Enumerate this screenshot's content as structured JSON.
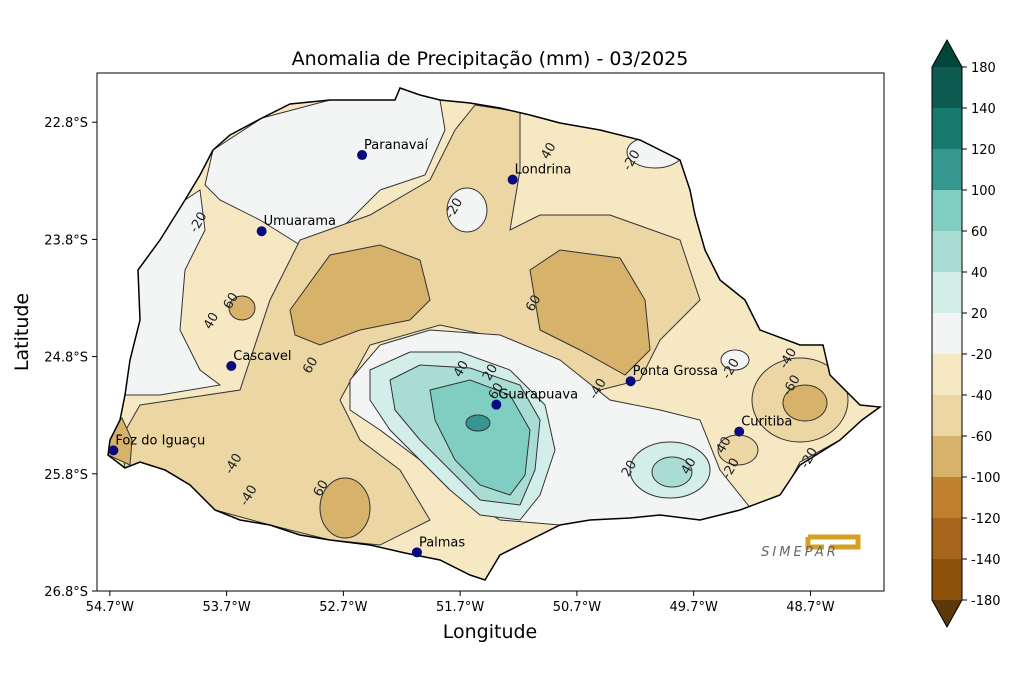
{
  "map": {
    "title": "Anomalia de Precipitação (mm) - 03/2025",
    "xlabel": "Longitude",
    "ylabel": "Latitude",
    "xlim": [
      -54.81,
      -48.07
    ],
    "ylim": [
      -26.8,
      -22.38
    ],
    "xticks": [
      {
        "value": -54.7,
        "label": "54.7°W"
      },
      {
        "value": -53.7,
        "label": "53.7°W"
      },
      {
        "value": -52.7,
        "label": "52.7°W"
      },
      {
        "value": -51.7,
        "label": "51.7°W"
      },
      {
        "value": -50.7,
        "label": "50.7°W"
      },
      {
        "value": -49.7,
        "label": "49.7°W"
      },
      {
        "value": -48.7,
        "label": "48.7°W"
      }
    ],
    "yticks": [
      {
        "value": -22.8,
        "label": "22.8°S"
      },
      {
        "value": -23.8,
        "label": "23.8°S"
      },
      {
        "value": -24.8,
        "label": "24.8°S"
      },
      {
        "value": -25.8,
        "label": "25.8°S"
      },
      {
        "value": -26.8,
        "label": "26.8°S"
      }
    ],
    "cities": [
      {
        "name": "Paranavaí",
        "lon": -52.54,
        "lat": -23.08
      },
      {
        "name": "Londrina",
        "lon": -51.25,
        "lat": -23.29
      },
      {
        "name": "Umuarama",
        "lon": -53.4,
        "lat": -23.73
      },
      {
        "name": "Cascavel",
        "lon": -53.66,
        "lat": -24.88
      },
      {
        "name": "Guarapuava",
        "lon": -51.39,
        "lat": -25.21
      },
      {
        "name": "Ponta Grossa",
        "lon": -50.24,
        "lat": -25.01
      },
      {
        "name": "Curitiba",
        "lon": -49.31,
        "lat": -25.44
      },
      {
        "name": "Foz do Iguaçu",
        "lon": -54.67,
        "lat": -25.6
      },
      {
        "name": "Palmas",
        "lon": -52.07,
        "lat": -26.47
      }
    ],
    "city_color": "#0a0a80",
    "contour_labels": [
      {
        "text": "-20",
        "lon": -53.95,
        "lat": -23.65
      },
      {
        "text": "40",
        "lon": -53.84,
        "lat": -24.49
      },
      {
        "text": "60",
        "lon": -53.67,
        "lat": -24.32
      },
      {
        "text": "60",
        "lon": -52.99,
        "lat": -24.87
      },
      {
        "text": "-20",
        "lon": -51.76,
        "lat": -23.53
      },
      {
        "text": "40",
        "lon": -50.95,
        "lat": -23.04
      },
      {
        "text": "-20",
        "lon": -50.24,
        "lat": -23.12
      },
      {
        "text": "60",
        "lon": -51.08,
        "lat": -24.34
      },
      {
        "text": "-40",
        "lon": -50.53,
        "lat": -25.07
      },
      {
        "text": "40",
        "lon": -51.7,
        "lat": -24.9
      },
      {
        "text": "20",
        "lon": -51.45,
        "lat": -24.93
      },
      {
        "text": "60",
        "lon": -51.4,
        "lat": -25.09
      },
      {
        "text": "20",
        "lon": -50.26,
        "lat": -25.75
      },
      {
        "text": "40",
        "lon": -49.75,
        "lat": -25.73
      },
      {
        "text": "-40",
        "lon": -48.9,
        "lat": -24.81
      },
      {
        "text": "-60",
        "lon": -48.87,
        "lat": -25.04
      },
      {
        "text": "-20",
        "lon": -48.72,
        "lat": -25.66
      },
      {
        "text": "40",
        "lon": -49.45,
        "lat": -25.55
      },
      {
        "text": "-20",
        "lon": -49.39,
        "lat": -25.75
      },
      {
        "text": "-40",
        "lon": -53.65,
        "lat": -25.71
      },
      {
        "text": "-40",
        "lon": -53.52,
        "lat": -25.98
      },
      {
        "text": "60",
        "lon": -52.9,
        "lat": -25.92
      },
      {
        "text": "-20",
        "lon": -49.39,
        "lat": -24.9
      }
    ],
    "logo": "SIMEPAR",
    "colorbar": {
      "ticks": [
        180,
        140,
        120,
        100,
        60,
        40,
        20,
        -20,
        -40,
        -60,
        -100,
        -120,
        -140,
        -180
      ],
      "colors": [
        "#0d5b50",
        "#177a6e",
        "#35978f",
        "#80cdc1",
        "#a9ddd4",
        "#d3eee9",
        "#f3f4f4",
        "#f6e8c3",
        "#ebd6a4",
        "#d7b26b",
        "#bf812d",
        "#a6661c",
        "#8c510a"
      ],
      "over_color": "#01463b",
      "under_color": "#5f380a"
    }
  }
}
